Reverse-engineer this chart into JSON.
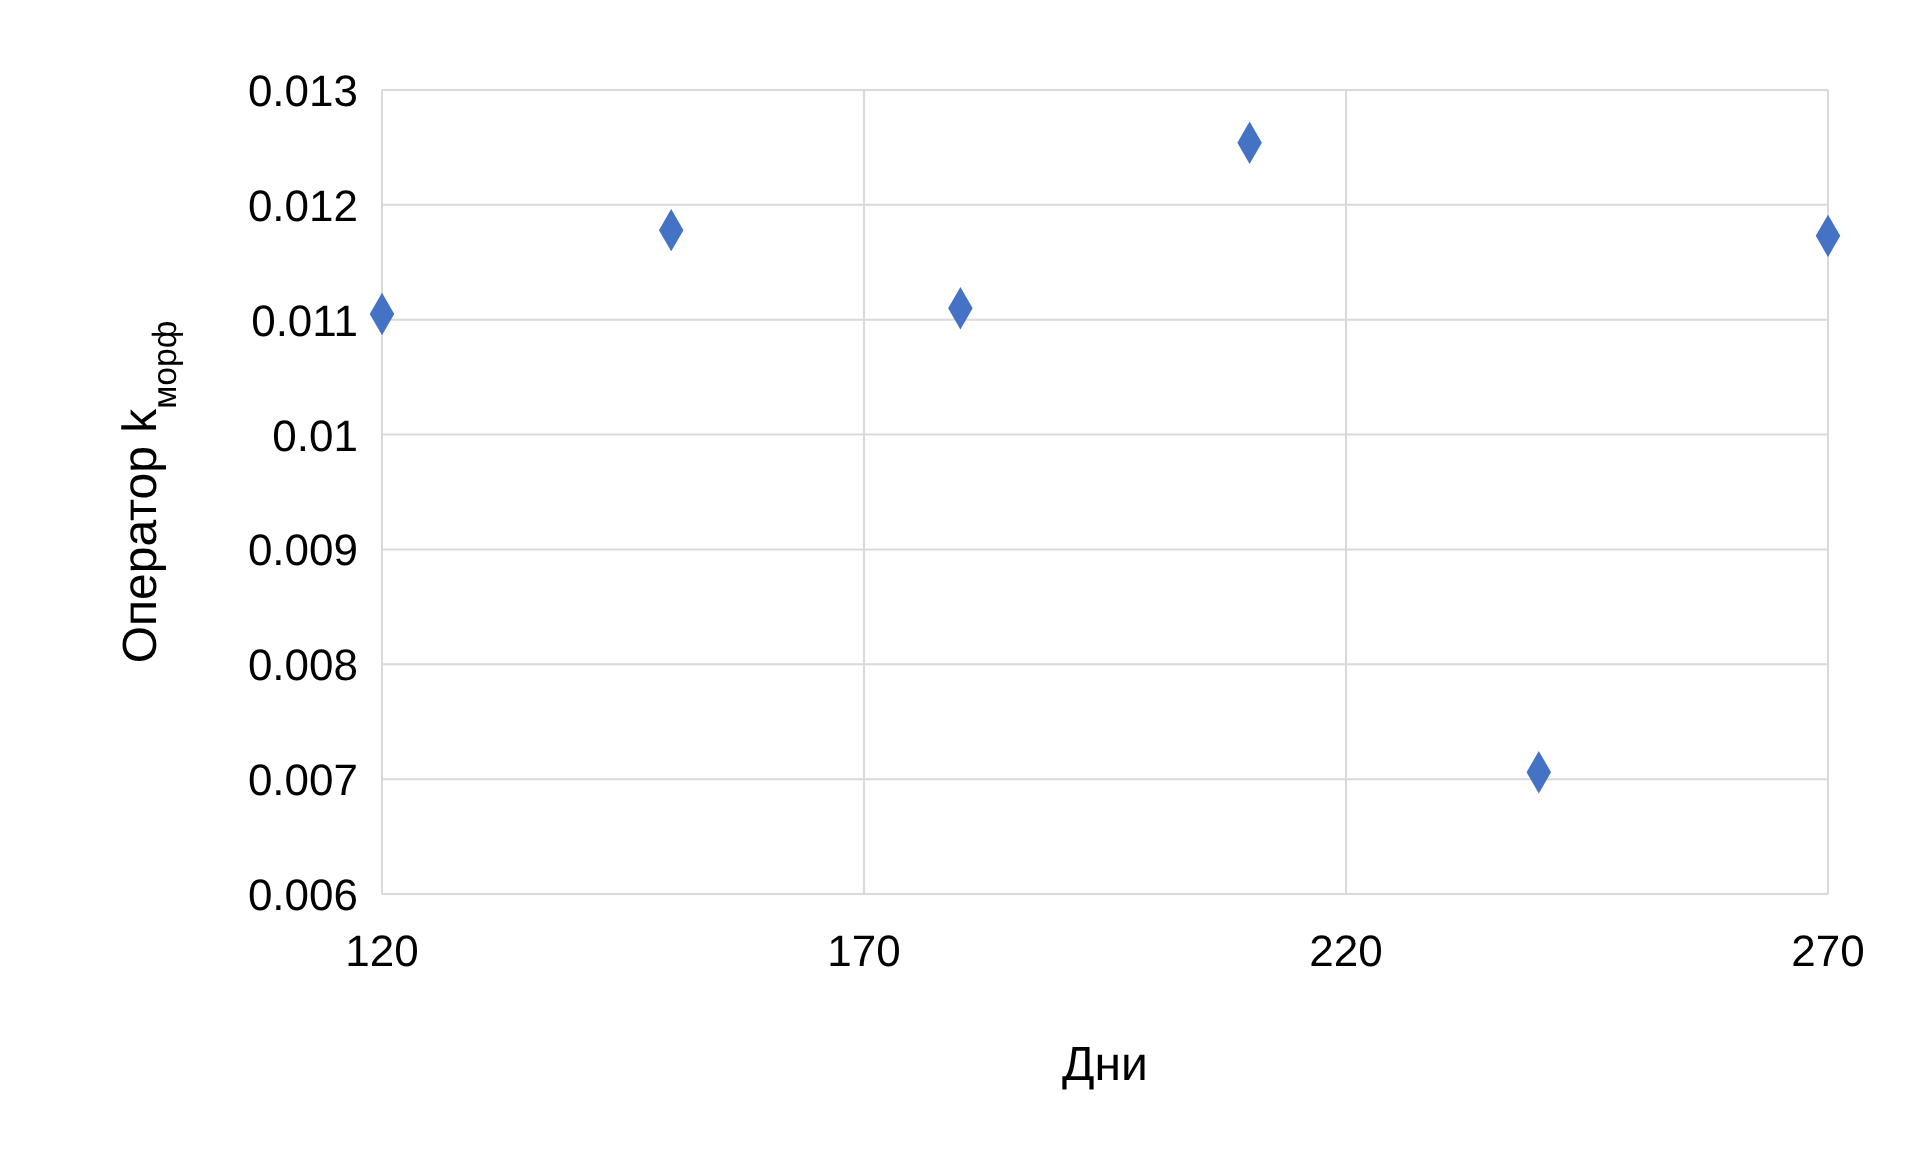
{
  "chart_data": {
    "type": "scatter",
    "xlabel": "Дни",
    "ylabel": "Оператор k$_{морф}$",
    "x": [
      120,
      150,
      180,
      210,
      240,
      270
    ],
    "values": [
      0.01105,
      0.01178,
      0.0111,
      0.01254,
      0.00706,
      0.01173
    ],
    "color": "#4472c4",
    "marker": "diamond",
    "xlim": [
      120,
      270
    ],
    "xticks": [
      120,
      170,
      220,
      270
    ],
    "ylim": [
      0.006,
      0.013
    ],
    "yticks": [
      0.006,
      0.007,
      0.008,
      0.009,
      0.01,
      0.011,
      0.012,
      0.013
    ],
    "grid": true
  }
}
